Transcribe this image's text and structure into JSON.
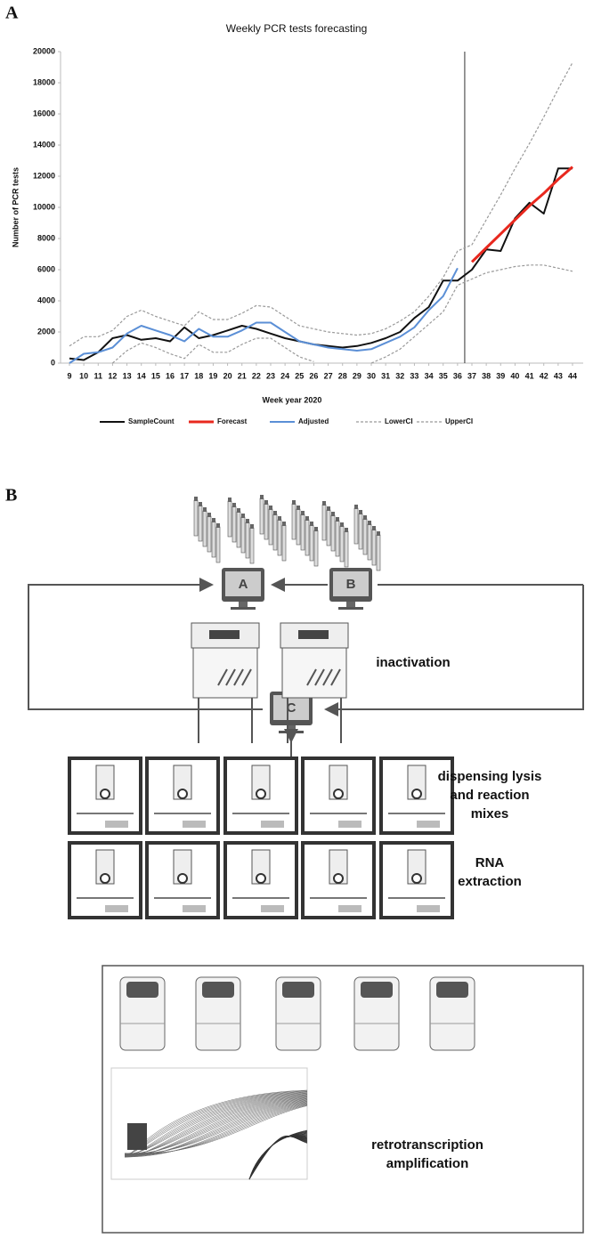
{
  "panel_labels": [
    "A",
    "B"
  ],
  "chart_data": {
    "type": "line",
    "title": "Weekly PCR tests forecasting",
    "x_label": "Week year 2020",
    "y_label": "Number of PCR tests",
    "categories": [
      9,
      10,
      11,
      12,
      13,
      14,
      15,
      16,
      17,
      18,
      19,
      20,
      21,
      22,
      23,
      24,
      25,
      26,
      27,
      28,
      29,
      30,
      31,
      32,
      33,
      34,
      35,
      36,
      37,
      38,
      39,
      40,
      41,
      42,
      43,
      44
    ],
    "ylim": [
      0,
      20000
    ],
    "yticks": [
      0,
      2000,
      4000,
      6000,
      8000,
      10000,
      12000,
      14000,
      16000,
      18000,
      20000
    ],
    "series": [
      {
        "name": "SampleCount",
        "color": "#111111",
        "width": 2,
        "dash": false,
        "values": [
          300,
          200,
          700,
          1600,
          1800,
          1500,
          1600,
          1400,
          2300,
          1600,
          1800,
          2100,
          2400,
          2200,
          1900,
          1600,
          1400,
          1200,
          1100,
          1000,
          1100,
          1300,
          1600,
          2000,
          2900,
          3600,
          5300,
          5300,
          6000,
          7300,
          7200,
          9300,
          10300,
          9600,
          12500,
          12500
        ]
      },
      {
        "name": "Forecast",
        "color": "#e8281e",
        "width": 3,
        "dash": false,
        "values": [
          null,
          null,
          null,
          null,
          null,
          null,
          null,
          null,
          null,
          null,
          null,
          null,
          null,
          null,
          null,
          null,
          null,
          null,
          null,
          null,
          null,
          null,
          null,
          null,
          null,
          null,
          null,
          null,
          6500,
          7400,
          8300,
          9200,
          10100,
          10900,
          11800,
          12600
        ]
      },
      {
        "name": "Adjusted",
        "color": "#5b8fd6",
        "width": 2,
        "dash": false,
        "values": [
          0,
          600,
          700,
          1000,
          1900,
          2400,
          2100,
          1800,
          1400,
          2200,
          1700,
          1700,
          2100,
          2600,
          2600,
          2000,
          1400,
          1200,
          1000,
          900,
          800,
          900,
          1300,
          1700,
          2300,
          3400,
          4300,
          6100,
          null,
          null,
          null,
          null,
          null,
          null,
          null,
          null
        ]
      },
      {
        "name": "LowerCI",
        "color": "#999999",
        "width": 1.2,
        "dash": true,
        "values": [
          null,
          null,
          null,
          0,
          800,
          1300,
          1000,
          600,
          300,
          1200,
          700,
          700,
          1200,
          1600,
          1600,
          1000,
          400,
          100,
          null,
          null,
          null,
          0,
          400,
          900,
          1700,
          2500,
          3300,
          5000,
          5400,
          5800,
          6000,
          6200,
          6300,
          6300,
          6100,
          5900
        ]
      },
      {
        "name": "UpperCI",
        "color": "#999999",
        "width": 1.2,
        "dash": true,
        "values": [
          1100,
          1700,
          1700,
          2100,
          3000,
          3400,
          3000,
          2700,
          2400,
          3300,
          2800,
          2800,
          3200,
          3700,
          3600,
          3000,
          2400,
          2200,
          2000,
          1900,
          1800,
          1900,
          2200,
          2700,
          3300,
          4300,
          5500,
          7200,
          7600,
          9200,
          10800,
          12500,
          14100,
          15800,
          17600,
          19300
        ]
      }
    ],
    "legend": "bottom"
  },
  "diagram": {
    "computers": [
      "A",
      "B",
      "C"
    ],
    "steps": [
      "inactivation",
      "dispensing lysis\nand reaction\nmixes",
      "RNA\nextraction",
      "retrotranscription\namplification"
    ]
  }
}
